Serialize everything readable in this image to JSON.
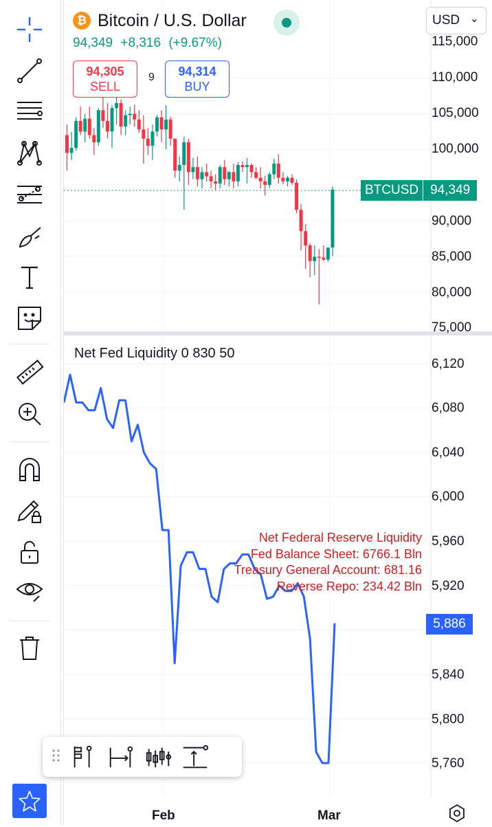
{
  "header": {
    "logo_text": "₿",
    "symbol_title": "Bitcoin / U.S. Dollar",
    "last_price": "94,349",
    "change_abs": "+8,316",
    "change_pct": "(+9.67%)",
    "sell": {
      "price": "94,305",
      "label": "SELL"
    },
    "buy": {
      "price": "94,314",
      "label": "BUY"
    },
    "spread": "9",
    "currency": "USD",
    "currency_caret": "⌄"
  },
  "price_axis": {
    "labels": [
      "115,000",
      "110,000",
      "105,000",
      "100,000",
      "90,000",
      "85,000",
      "80,000",
      "75,000"
    ],
    "badge_symbol": "BTCUSD",
    "badge_value": "94,349"
  },
  "indicator": {
    "title": "Net Fed Liquidity 0 830 50",
    "axis_labels": [
      "6,120",
      "6,080",
      "6,040",
      "6,000",
      "5,960",
      "5,920",
      "5,840",
      "5,800",
      "5,760"
    ],
    "badge_value": "5,886",
    "annotation": [
      "Net Federal Reserve Liquidity",
      "Fed Balance Sheet: 6766.1 Bln",
      "Treasury General Account: 681.16",
      "Reverse Repo: 234.42 Bln"
    ]
  },
  "time_axis": {
    "labels": [
      "Feb",
      "Mar"
    ]
  },
  "colors": {
    "up": "#089981",
    "down": "#f23645",
    "line": "#2962ff",
    "annotation": "#cc1e1e",
    "accent": "#2962ff"
  },
  "chart_data": [
    {
      "type": "candlestick",
      "title": "Bitcoin / U.S. Dollar",
      "ylim": [
        75000,
        115000
      ],
      "note": "daily candles, open/high/low/close",
      "candles": [
        [
          102000,
          103500,
          97000,
          99500
        ],
        [
          99500,
          102500,
          98500,
          100200
        ],
        [
          100200,
          104500,
          99800,
          104000
        ],
        [
          104000,
          106000,
          102000,
          102500
        ],
        [
          102500,
          105000,
          101000,
          104300
        ],
        [
          104300,
          106000,
          101500,
          102000
        ],
        [
          102000,
          103000,
          99200,
          101000
        ],
        [
          101000,
          105800,
          100500,
          105500
        ],
        [
          105500,
          107500,
          103000,
          104000
        ],
        [
          104000,
          106500,
          101500,
          102500
        ],
        [
          102500,
          106200,
          100200,
          105800
        ],
        [
          105800,
          107800,
          103500,
          106500
        ],
        [
          106500,
          107000,
          102000,
          103200
        ],
        [
          103200,
          105500,
          102000,
          104800
        ],
        [
          104800,
          106000,
          103500,
          105000
        ],
        [
          105000,
          106300,
          103200,
          104200
        ],
        [
          104200,
          105500,
          102300,
          102800
        ],
        [
          102800,
          104800,
          98000,
          101500
        ],
        [
          101500,
          103000,
          99200,
          100500
        ],
        [
          100500,
          103500,
          98500,
          102500
        ],
        [
          102500,
          104800,
          101800,
          104500
        ],
        [
          104500,
          105500,
          101000,
          102800
        ],
        [
          102800,
          106200,
          100000,
          104200
        ],
        [
          104200,
          104600,
          100500,
          101500
        ],
        [
          101500,
          101500,
          96000,
          97000
        ],
        [
          97000,
          99000,
          95500,
          97800
        ],
        [
          97800,
          101800,
          91500,
          101000
        ],
        [
          101000,
          101500,
          95000,
          96800
        ],
        [
          96800,
          98800,
          95800,
          97500
        ],
        [
          97500,
          99000,
          94800,
          95800
        ],
        [
          95800,
          97500,
          94500,
          96800
        ],
        [
          96800,
          98000,
          95500,
          96200
        ],
        [
          96200,
          97000,
          94500,
          95500
        ],
        [
          95500,
          96500,
          94300,
          95200
        ],
        [
          95200,
          97800,
          94500,
          97500
        ],
        [
          97500,
          98500,
          95000,
          95800
        ],
        [
          95800,
          97000,
          94800,
          96800
        ],
        [
          96800,
          98000,
          94500,
          95500
        ],
        [
          95500,
          98200,
          94800,
          97800
        ],
        [
          97800,
          98300,
          96800,
          97500
        ],
        [
          97500,
          98800,
          95200,
          97800
        ],
        [
          97800,
          98000,
          96000,
          96800
        ],
        [
          96800,
          97500,
          95800,
          96000
        ],
        [
          96000,
          97500,
          94500,
          95500
        ],
        [
          95500,
          96300,
          93500,
          95000
        ],
        [
          95000,
          96800,
          94500,
          96500
        ],
        [
          96500,
          98700,
          95800,
          98000
        ],
        [
          98000,
          99300,
          95200,
          96000
        ],
        [
          96000,
          96800,
          95100,
          95500
        ],
        [
          95500,
          96300,
          94800,
          96000
        ],
        [
          96000,
          96500,
          95000,
          95300
        ],
        [
          95300,
          95800,
          91000,
          91500
        ],
        [
          91500,
          92300,
          85800,
          88500
        ],
        [
          88500,
          89500,
          83200,
          86500
        ],
        [
          86500,
          86800,
          82000,
          84300
        ],
        [
          84300,
          86500,
          82300,
          84900
        ],
        [
          84900,
          86000,
          78200,
          84800
        ],
        [
          84800,
          86500,
          84300,
          84500
        ],
        [
          84500,
          86000,
          84200,
          86200
        ],
        [
          86200,
          94800,
          85000,
          94349
        ]
      ]
    },
    {
      "type": "line",
      "title": "Net Fed Liquidity 0 830 50",
      "ylim": [
        5750,
        6130
      ],
      "series": [
        {
          "values": [
            6085,
            6110,
            6085,
            6085,
            6078,
            6078,
            6098,
            6070,
            6062,
            6087,
            6087,
            6050,
            6065,
            6040,
            6030,
            6025,
            5970,
            5970,
            5850,
            5938,
            5950,
            5950,
            5935,
            5935,
            5910,
            5905,
            5935,
            5940,
            5940,
            5948,
            5948,
            5935,
            5930,
            5908,
            5910,
            5920,
            5915,
            5915,
            5922,
            5910,
            5872,
            5770,
            5760,
            5760,
            5886
          ]
        }
      ]
    }
  ]
}
